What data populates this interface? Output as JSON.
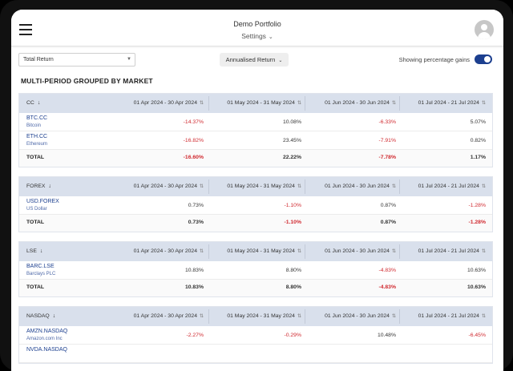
{
  "header": {
    "title": "Demo Portfolio",
    "settings_label": "Settings"
  },
  "controls": {
    "return_type": "Total Return",
    "annualised_label": "Annualised Return",
    "toggle_label": "Showing percentage gains"
  },
  "section_title": "MULTI-PERIOD GROUPED BY MARKET",
  "periods": [
    "01 Apr 2024 - 30 Apr 2024",
    "01 May 2024 - 31 May 2024",
    "01 Jun 2024 - 30 Jun 2024",
    "01 Jul 2024 - 21 Jul 2024"
  ],
  "groups": [
    {
      "market": "CC",
      "rows": [
        {
          "symbol": "BTC.CC",
          "name": "Bitcoin",
          "values": [
            "-14.37%",
            "10.08%",
            "-6.33%",
            "5.07%"
          ]
        },
        {
          "symbol": "ETH.CC",
          "name": "Ethereum",
          "values": [
            "-16.82%",
            "23.45%",
            "-7.91%",
            "0.82%"
          ]
        }
      ],
      "total_label": "TOTAL",
      "totals": [
        "-16.60%",
        "22.22%",
        "-7.78%",
        "1.17%"
      ]
    },
    {
      "market": "FOREX",
      "rows": [
        {
          "symbol": "USD.FOREX",
          "name": "US Dollar",
          "values": [
            "0.73%",
            "-1.10%",
            "0.87%",
            "-1.28%"
          ]
        }
      ],
      "total_label": "TOTAL",
      "totals": [
        "0.73%",
        "-1.10%",
        "0.87%",
        "-1.28%"
      ]
    },
    {
      "market": "LSE",
      "rows": [
        {
          "symbol": "BARC.LSE",
          "name": "Barclays PLC",
          "values": [
            "10.83%",
            "8.80%",
            "-4.83%",
            "10.63%"
          ]
        }
      ],
      "total_label": "TOTAL",
      "totals": [
        "10.83%",
        "8.80%",
        "-4.83%",
        "10.63%"
      ]
    },
    {
      "market": "NASDAQ",
      "rows": [
        {
          "symbol": "AMZN.NASDAQ",
          "name": "Amazon.com Inc",
          "values": [
            "-2.27%",
            "-0.29%",
            "10.48%",
            "-6.45%"
          ]
        },
        {
          "symbol": "NVDA.NASDAQ",
          "name": "",
          "values": [
            "",
            "",
            "",
            ""
          ]
        }
      ],
      "total_label": "",
      "totals": []
    }
  ],
  "colors": {
    "accent": "#1c3f8f",
    "negative": "#d0292f",
    "group_header": "#d9e0ec"
  }
}
